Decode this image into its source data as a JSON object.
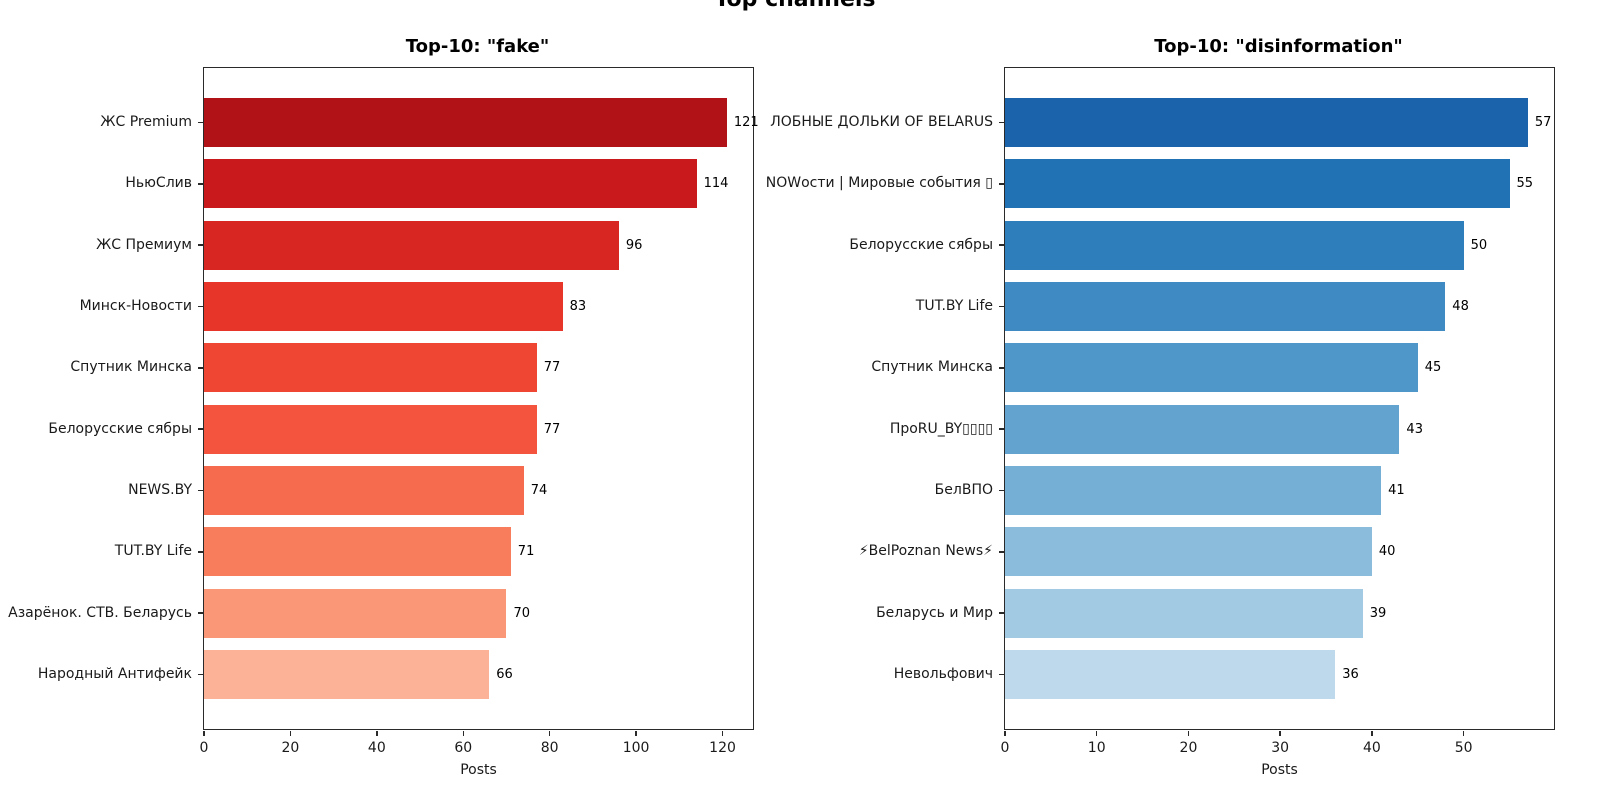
{
  "figure_title": "Top channels",
  "chart_data": [
    {
      "type": "barh",
      "title": "Top-10: \"fake\"",
      "xlabel": "Posts",
      "xlim": [
        0,
        127.05
      ],
      "xticks": [
        0,
        20,
        40,
        60,
        80,
        100,
        120
      ],
      "grid": false,
      "legend": "none",
      "categories": [
        "ЖС Premium",
        "НьюСлив",
        "ЖС Премиум",
        "Минск-Новости",
        "Спутник Минска",
        "Белорусские сябры",
        "NEWS.BY",
        "TUT.BY Life",
        "Азарёнок. СТВ. Беларусь",
        "Народный Антифейк"
      ],
      "values": [
        121,
        114,
        96,
        83,
        77,
        77,
        74,
        71,
        70,
        66
      ],
      "bar_colors": [
        "#b01217",
        "#c9191d",
        "#d82722",
        "#e73529",
        "#ef4533",
        "#f4543d",
        "#f66a4d",
        "#f87d5d",
        "#f99776",
        "#fbb296"
      ]
    },
    {
      "type": "barh",
      "title": "Top-10: \"disinformation\"",
      "xlabel": "Posts",
      "xlim": [
        0,
        59.85
      ],
      "xticks": [
        0,
        10,
        20,
        30,
        40,
        50
      ],
      "grid": false,
      "legend": "none",
      "categories": [
        "ЛОБНЫЕ ДОЛЬКИ OF BELARUS",
        "NOWости | Мировые события ▯",
        "Белорусские сябры",
        "TUT.BY Life",
        "Спутник Минска",
        "ПроRU_BY▯▯▯▯",
        "БелВПО",
        "⚡BelPoznan News⚡",
        "Беларусь и Мир",
        "Невольфович"
      ],
      "values": [
        57,
        55,
        50,
        48,
        45,
        43,
        41,
        40,
        39,
        36
      ],
      "bar_colors": [
        "#1b63ab",
        "#2171b5",
        "#2f7ebc",
        "#3f8ac2",
        "#5097c9",
        "#62a3cf",
        "#76afd5",
        "#8bbcdc",
        "#a3cae3",
        "#bed9ec"
      ]
    }
  ]
}
